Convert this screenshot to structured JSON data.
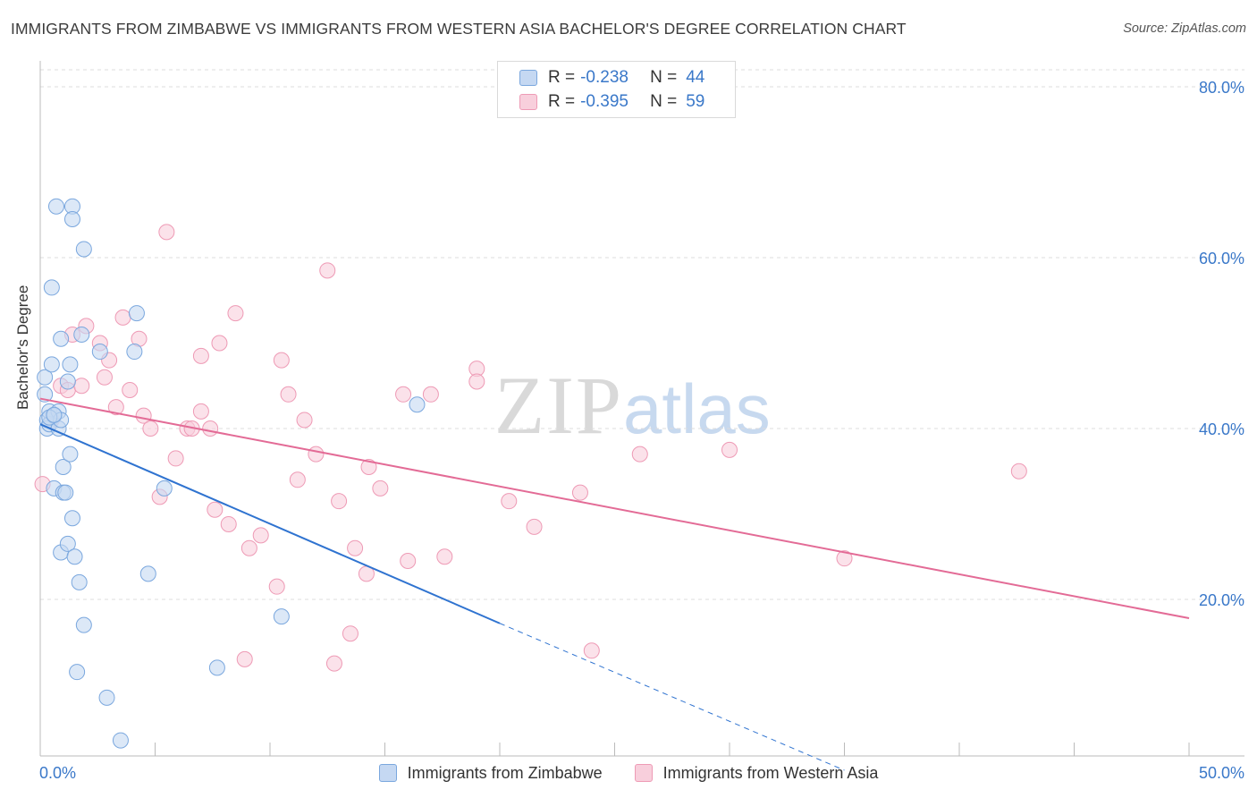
{
  "title": "IMMIGRANTS FROM ZIMBABWE VS IMMIGRANTS FROM WESTERN ASIA BACHELOR'S DEGREE CORRELATION CHART",
  "source": "Source: ZipAtlas.com",
  "watermark": {
    "zip": "ZIP",
    "atlas": "atlas"
  },
  "legend_top": {
    "rows": [
      {
        "r_label": "R =",
        "r_value": "-0.238",
        "n_label": "N =",
        "n_value": "44"
      },
      {
        "r_label": "R =",
        "r_value": "-0.395",
        "n_label": "N =",
        "n_value": "59"
      }
    ]
  },
  "colors": {
    "blue_fill": "#c5d8f2",
    "blue_stroke": "#7aa7de",
    "blue_line": "#2f73d0",
    "pink_fill": "#f8cfdc",
    "pink_stroke": "#ee9ab5",
    "pink_line": "#e36b96",
    "tick_label": "#3a78c9",
    "grid": "#dcdcdc"
  },
  "chart_data": {
    "type": "scatter",
    "title": "IMMIGRANTS FROM ZIMBABWE VS IMMIGRANTS FROM WESTERN ASIA BACHELOR'S DEGREE CORRELATION CHART",
    "xlabel": "",
    "ylabel": "Bachelor's Degree",
    "xlim": [
      0,
      50
    ],
    "ylim": [
      0,
      80
    ],
    "x_tick_labels": [
      "0.0%",
      "50.0%"
    ],
    "y_ticks": [
      20,
      40,
      60,
      80
    ],
    "y_tick_labels": [
      "20.0%",
      "40.0%",
      "60.0%",
      "80.0%"
    ],
    "grid": true,
    "legend_placement": "bottom",
    "series": [
      {
        "name": "Immigrants from Zimbabwe",
        "R": -0.238,
        "N": 44,
        "trend": {
          "x0": 0,
          "y0": 40.5,
          "x1": 20,
          "y1": 17.2,
          "dashed_to_x": 35,
          "dashed_to_y": 0
        },
        "points": [
          [
            0.2,
            46
          ],
          [
            0.2,
            44
          ],
          [
            0.3,
            41
          ],
          [
            0.3,
            40
          ],
          [
            0.4,
            42
          ],
          [
            0.4,
            40.5
          ],
          [
            0.5,
            47.5
          ],
          [
            0.5,
            56.5
          ],
          [
            0.6,
            41.5
          ],
          [
            0.6,
            33
          ],
          [
            0.7,
            66
          ],
          [
            0.8,
            42
          ],
          [
            0.8,
            40
          ],
          [
            0.9,
            41
          ],
          [
            0.9,
            25.5
          ],
          [
            0.9,
            50.5
          ],
          [
            1.0,
            35.5
          ],
          [
            1.0,
            32.5
          ],
          [
            1.1,
            32.5
          ],
          [
            1.2,
            45.5
          ],
          [
            1.2,
            26.5
          ],
          [
            1.3,
            47.5
          ],
          [
            1.3,
            37
          ],
          [
            1.4,
            66
          ],
          [
            1.4,
            64.5
          ],
          [
            1.4,
            29.5
          ],
          [
            1.5,
            25
          ],
          [
            1.7,
            22
          ],
          [
            1.8,
            51
          ],
          [
            1.9,
            17
          ],
          [
            1.9,
            61
          ],
          [
            1.6,
            11.5
          ],
          [
            2.6,
            49
          ],
          [
            2.9,
            8.5
          ],
          [
            3.5,
            3.5
          ],
          [
            4.1,
            49
          ],
          [
            4.2,
            53.5
          ],
          [
            4.7,
            23
          ],
          [
            5.4,
            33
          ],
          [
            7.7,
            12
          ],
          [
            10.5,
            18
          ],
          [
            16.4,
            42.8
          ],
          [
            0.4,
            41.3
          ],
          [
            0.6,
            41.6
          ]
        ]
      },
      {
        "name": "Immigrants from Western Asia",
        "R": -0.395,
        "N": 59,
        "trend": {
          "x0": 0,
          "y0": 43.5,
          "x1": 50,
          "y1": 17.8
        },
        "points": [
          [
            0.1,
            33.5
          ],
          [
            0.9,
            45
          ],
          [
            1.2,
            44.5
          ],
          [
            1.4,
            51
          ],
          [
            1.8,
            45
          ],
          [
            2.0,
            52
          ],
          [
            2.6,
            50
          ],
          [
            2.8,
            46
          ],
          [
            3.0,
            48
          ],
          [
            3.3,
            42.5
          ],
          [
            3.6,
            53
          ],
          [
            3.9,
            44.5
          ],
          [
            4.3,
            50.5
          ],
          [
            4.5,
            41.5
          ],
          [
            4.8,
            40
          ],
          [
            5.2,
            32
          ],
          [
            5.5,
            63
          ],
          [
            5.9,
            36.5
          ],
          [
            6.4,
            40
          ],
          [
            6.6,
            40
          ],
          [
            7.0,
            48.5
          ],
          [
            7.0,
            42
          ],
          [
            7.4,
            40
          ],
          [
            7.6,
            30.5
          ],
          [
            7.8,
            50
          ],
          [
            8.2,
            28.8
          ],
          [
            8.5,
            53.5
          ],
          [
            8.9,
            13
          ],
          [
            9.1,
            26
          ],
          [
            9.6,
            27.5
          ],
          [
            10.3,
            21.5
          ],
          [
            10.5,
            48
          ],
          [
            10.8,
            44
          ],
          [
            11.2,
            34
          ],
          [
            11.5,
            41
          ],
          [
            12.0,
            37
          ],
          [
            12.5,
            58.5
          ],
          [
            12.8,
            12.5
          ],
          [
            13.0,
            31.5
          ],
          [
            13.5,
            16
          ],
          [
            13.7,
            26
          ],
          [
            14.2,
            23
          ],
          [
            14.3,
            35.5
          ],
          [
            14.8,
            33
          ],
          [
            15.8,
            44
          ],
          [
            16.0,
            24.5
          ],
          [
            17.0,
            44
          ],
          [
            17.6,
            25
          ],
          [
            19.0,
            47
          ],
          [
            19.0,
            45.5
          ],
          [
            20.4,
            31.5
          ],
          [
            21.5,
            28.5
          ],
          [
            23.5,
            32.5
          ],
          [
            24.0,
            14
          ],
          [
            26.1,
            37
          ],
          [
            30.0,
            37.5
          ],
          [
            35.0,
            24.8
          ],
          [
            42.6,
            35
          ],
          [
            0.5,
            41
          ]
        ]
      }
    ]
  }
}
